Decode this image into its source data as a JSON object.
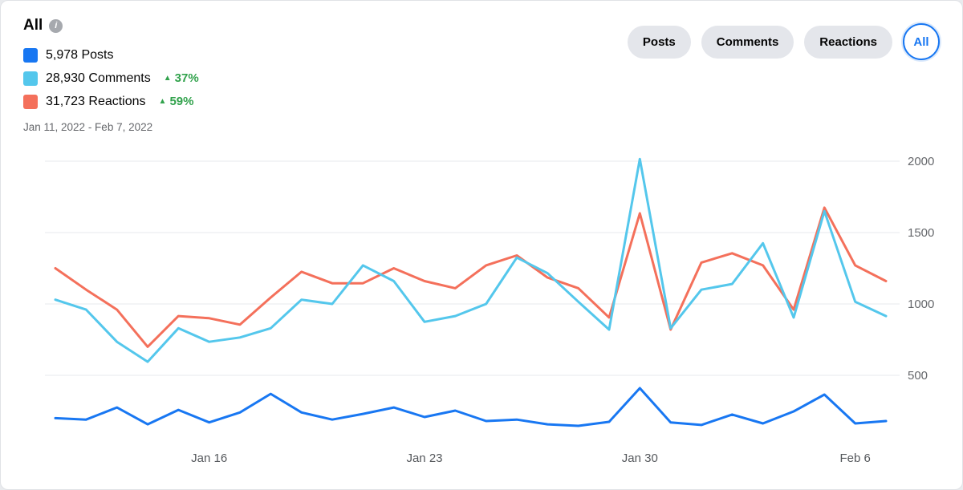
{
  "header": {
    "title": "All",
    "info_icon_glyph": "i",
    "change_color": "#31a24c",
    "legend": [
      {
        "label": "5,978 Posts",
        "color": "#1877f2"
      },
      {
        "label": "28,930 Comments",
        "color": "#54c7ec",
        "change": "37%",
        "change_icon": "▲"
      },
      {
        "label": "31,723 Reactions",
        "color": "#f4705b",
        "change": "59%",
        "change_icon": "▲"
      }
    ],
    "date_range": "Jan 11, 2022 - Feb 7, 2022"
  },
  "filters": [
    {
      "label": "Posts",
      "selected": false
    },
    {
      "label": "Comments",
      "selected": false
    },
    {
      "label": "Reactions",
      "selected": false
    },
    {
      "label": "All",
      "selected": true
    }
  ],
  "chart_data": {
    "type": "line",
    "title": "All",
    "subtitle": "Jan 11, 2022 - Feb 7, 2022",
    "grid": true,
    "legend_position": "top-left",
    "y_axis_side": "right",
    "ylim": [
      0,
      2100
    ],
    "y_ticks": [
      500,
      1000,
      1500,
      2000
    ],
    "x": [
      "Jan 11",
      "Jan 12",
      "Jan 13",
      "Jan 14",
      "Jan 15",
      "Jan 16",
      "Jan 17",
      "Jan 18",
      "Jan 19",
      "Jan 20",
      "Jan 21",
      "Jan 22",
      "Jan 23",
      "Jan 24",
      "Jan 25",
      "Jan 26",
      "Jan 27",
      "Jan 28",
      "Jan 29",
      "Jan 30",
      "Jan 31",
      "Feb 1",
      "Feb 2",
      "Feb 3",
      "Feb 4",
      "Feb 5",
      "Feb 6",
      "Feb 7"
    ],
    "x_tick_labels": [
      "Jan 16",
      "Jan 23",
      "Jan 30",
      "Feb 6"
    ],
    "x_tick_indices": [
      5,
      12,
      19,
      26
    ],
    "series": [
      {
        "name": "Posts",
        "color": "#1877f2",
        "total": "5,978",
        "values": [
          200,
          190,
          275,
          157,
          258,
          170,
          240,
          370,
          240,
          190,
          230,
          275,
          208,
          253,
          180,
          190,
          157,
          146,
          174,
          410,
          170,
          152,
          225,
          163,
          247,
          365,
          163,
          180
        ]
      },
      {
        "name": "Comments",
        "color": "#54c7ec",
        "total": "28,930",
        "change": "+37%",
        "values": [
          1030,
          960,
          735,
          595,
          830,
          735,
          765,
          830,
          1030,
          1000,
          1270,
          1160,
          875,
          915,
          1000,
          1325,
          1215,
          1015,
          820,
          2015,
          830,
          1100,
          1140,
          1425,
          905,
          1650,
          1015,
          915
        ]
      },
      {
        "name": "Reactions",
        "color": "#f4705b",
        "total": "31,723",
        "change": "+59%",
        "values": [
          1250,
          1100,
          960,
          700,
          915,
          900,
          855,
          1045,
          1225,
          1145,
          1145,
          1250,
          1160,
          1110,
          1270,
          1340,
          1185,
          1110,
          905,
          1635,
          820,
          1290,
          1355,
          1270,
          960,
          1675,
          1270,
          1160
        ]
      }
    ]
  }
}
